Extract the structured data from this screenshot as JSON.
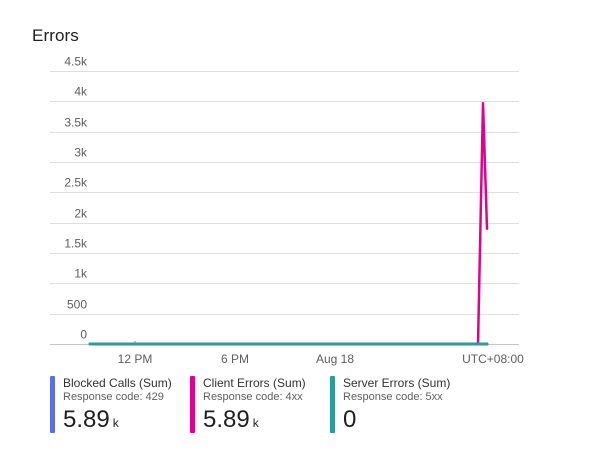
{
  "title": "Errors",
  "chart_data": {
    "type": "line",
    "y_ticks": [
      "0",
      "500",
      "1k",
      "1.5k",
      "2k",
      "2.5k",
      "3k",
      "3.5k",
      "4k",
      "4.5k"
    ],
    "ylim": [
      0,
      4500
    ],
    "x_ticks": [
      "12 PM",
      "6 PM",
      "Aug 18",
      "UTC+08:00"
    ],
    "grid": true,
    "series": [
      {
        "name": "Blocked Calls (Sum)",
        "color": "#5b6fe6",
        "points": [
          [
            "start",
            0
          ],
          [
            "end",
            0
          ]
        ]
      },
      {
        "name": "Client Errors (Sum)",
        "color": "#e3008c",
        "points": [
          [
            "start",
            0
          ],
          [
            "before spike",
            0
          ],
          [
            "spike",
            3970
          ],
          [
            "end",
            1900
          ]
        ]
      },
      {
        "name": "Server Errors (Sum)",
        "color": "#2b9b9b",
        "points": [
          [
            "start",
            0
          ],
          [
            "end",
            0
          ]
        ]
      }
    ]
  },
  "legend": [
    {
      "name": "Blocked Calls (Sum)",
      "sub": "Response code: 429",
      "value": "5.89",
      "unit": "k",
      "color": "#5b6fe6"
    },
    {
      "name": "Client Errors (Sum)",
      "sub": "Response code: 4xx",
      "value": "5.89",
      "unit": "k",
      "color": "#e3008c"
    },
    {
      "name": "Server Errors (Sum)",
      "sub": "Response code: 5xx",
      "value": "0",
      "unit": "",
      "color": "#2b9b9b"
    }
  ]
}
